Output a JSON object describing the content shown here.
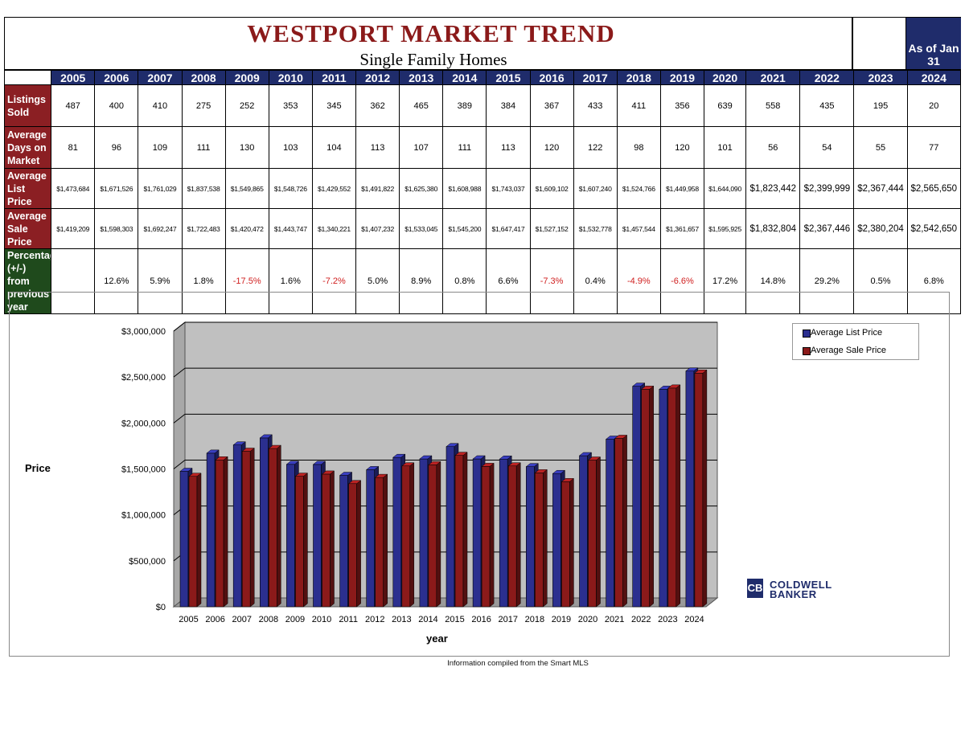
{
  "title": "WESTPORT MARKET TREND",
  "subtitle": "Single Family Homes",
  "as_of_label": "As of Jan 31",
  "years": [
    "2005",
    "2006",
    "2007",
    "2008",
    "2009",
    "2010",
    "2011",
    "2012",
    "2013",
    "2014",
    "2015",
    "2016",
    "2017",
    "2018",
    "2019",
    "2020",
    "2021",
    "2022",
    "2023",
    "2024"
  ],
  "table": {
    "rows": [
      {
        "label": "Listings Sold",
        "values": [
          "487",
          "400",
          "410",
          "275",
          "252",
          "353",
          "345",
          "362",
          "465",
          "389",
          "384",
          "367",
          "433",
          "411",
          "356",
          "639",
          "558",
          "435",
          "195",
          "20"
        ]
      },
      {
        "label": "Average Days on Market",
        "values": [
          "81",
          "96",
          "109",
          "111",
          "130",
          "103",
          "104",
          "113",
          "107",
          "111",
          "113",
          "120",
          "122",
          "98",
          "120",
          "101",
          "56",
          "54",
          "55",
          "77"
        ]
      },
      {
        "label": "Average List Price",
        "values": [
          "$1,473,684",
          "$1,671,526",
          "$1,761,029",
          "$1,837,538",
          "$1,549,865",
          "$1,548,726",
          "$1,429,552",
          "$1,491,822",
          "$1,625,380",
          "$1,608,988",
          "$1,743,037",
          "$1,609,102",
          "$1,607,240",
          "$1,524,766",
          "$1,449,958",
          "$1,644,090",
          "$1,823,442",
          "$2,399,999",
          "$2,367,444",
          "$2,565,650"
        ]
      },
      {
        "label": "Average Sale Price",
        "values": [
          "$1,419,209",
          "$1,598,303",
          "$1,692,247",
          "$1,722,483",
          "$1,420,472",
          "$1,443,747",
          "$1,340,221",
          "$1,407,232",
          "$1,533,045",
          "$1,545,200",
          "$1,647,417",
          "$1,527,152",
          "$1,532,778",
          "$1,457,544",
          "$1,361,657",
          "$1,595,925",
          "$1,832,804",
          "$2,367,446",
          "$2,380,204",
          "$2,542,650"
        ]
      },
      {
        "label": "Percentage (+/-) from previous year",
        "values": [
          "",
          "12.6%",
          "5.9%",
          "1.8%",
          "-17.5%",
          "1.6%",
          "-7.2%",
          "5.0%",
          "8.9%",
          "0.8%",
          "6.6%",
          "-7.3%",
          "0.4%",
          "-4.9%",
          "-6.6%",
          "17.2%",
          "14.8%",
          "29.2%",
          "0.5%",
          "6.8%"
        ]
      }
    ]
  },
  "chart_data": {
    "type": "bar",
    "categories": [
      "2005",
      "2006",
      "2007",
      "2008",
      "2009",
      "2010",
      "2011",
      "2012",
      "2013",
      "2014",
      "2015",
      "2016",
      "2017",
      "2018",
      "2019",
      "2020",
      "2021",
      "2022",
      "2023",
      "2024"
    ],
    "series": [
      {
        "name": "Average List Price",
        "color": "#2b2f8f",
        "values": [
          1473684,
          1671526,
          1761029,
          1837538,
          1549865,
          1548726,
          1429552,
          1491822,
          1625380,
          1608988,
          1743037,
          1609102,
          1607240,
          1524766,
          1449958,
          1644090,
          1823442,
          2399999,
          2367444,
          2565650
        ]
      },
      {
        "name": "Average Sale Price",
        "color": "#8b1a1a",
        "values": [
          1419209,
          1598303,
          1692247,
          1722483,
          1420472,
          1443747,
          1340221,
          1407232,
          1533045,
          1545200,
          1647417,
          1527152,
          1532778,
          1457544,
          1361657,
          1595925,
          1832804,
          2367446,
          2380204,
          2542650
        ]
      }
    ],
    "ylim": [
      0,
      3000000
    ],
    "yticks": [
      "$0",
      "$500,000",
      "$1,000,000",
      "$1,500,000",
      "$2,000,000",
      "$2,500,000",
      "$3,000,000"
    ],
    "xlabel": "year",
    "ylabel": "Price",
    "grid": true,
    "legend": "top-right"
  },
  "logo": {
    "mark": "CB",
    "line1": "COLDWELL",
    "line2": "BANKER"
  },
  "footnote": "Information compiled from the Smart MLS"
}
